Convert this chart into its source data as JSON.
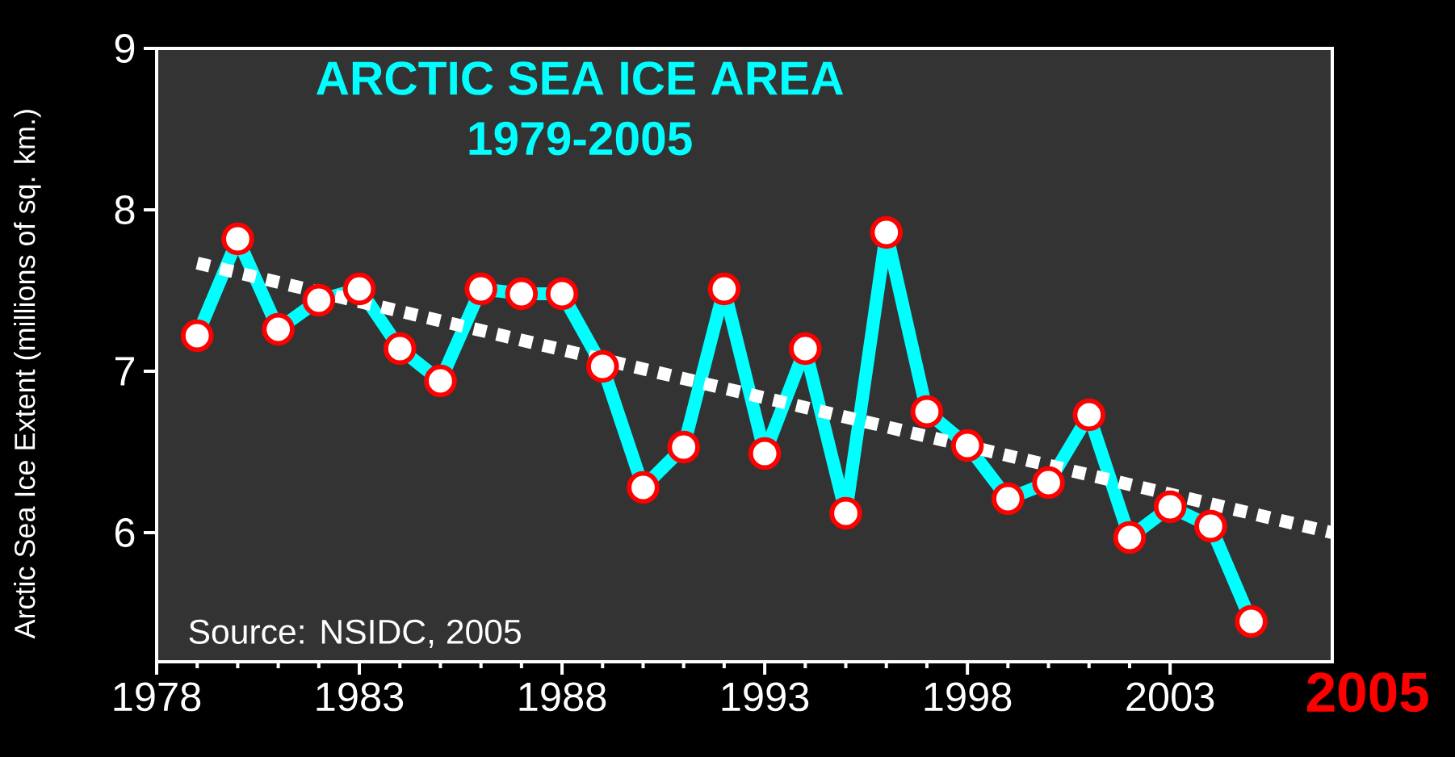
{
  "chart_data": {
    "type": "line",
    "title": "ARCTIC SEA ICE AREA",
    "subtitle": "1979-2005",
    "ylabel": "Arctic Sea Ice Extent (millions of sq. km.)",
    "annotations": [
      "Source: NSIDC, 2005",
      "2005"
    ],
    "xlim": [
      1978,
      2007
    ],
    "xticks": [
      1978,
      1983,
      1988,
      1993,
      1998,
      2003
    ],
    "ylim": [
      5.2,
      9.0
    ],
    "yticks": [
      6,
      7,
      8,
      9
    ],
    "series": [
      {
        "color": "#00ffff",
        "marker": "circle",
        "line_style": "solid",
        "x": [
          1979,
          1980,
          1981,
          1982,
          1983,
          1984,
          1985,
          1986,
          1987,
          1988,
          1989,
          1990,
          1991,
          1992,
          1993,
          1994,
          1995,
          1996,
          1997,
          1998,
          1999,
          2000,
          2001,
          2002,
          2003,
          2004,
          2005
        ],
        "values": [
          7.22,
          7.82,
          7.26,
          7.44,
          7.51,
          7.14,
          6.94,
          7.51,
          7.48,
          7.48,
          7.03,
          6.28,
          6.53,
          7.51,
          6.49,
          7.14,
          6.12,
          7.86,
          6.75,
          6.54,
          6.21,
          6.31,
          6.73,
          5.97,
          6.16,
          6.04,
          5.45
        ]
      },
      {
        "color": "#ffffff",
        "marker": "none",
        "line_style": "dashed",
        "x": [
          1979,
          2007
        ],
        "values": [
          7.67,
          6.0
        ]
      }
    ]
  }
}
